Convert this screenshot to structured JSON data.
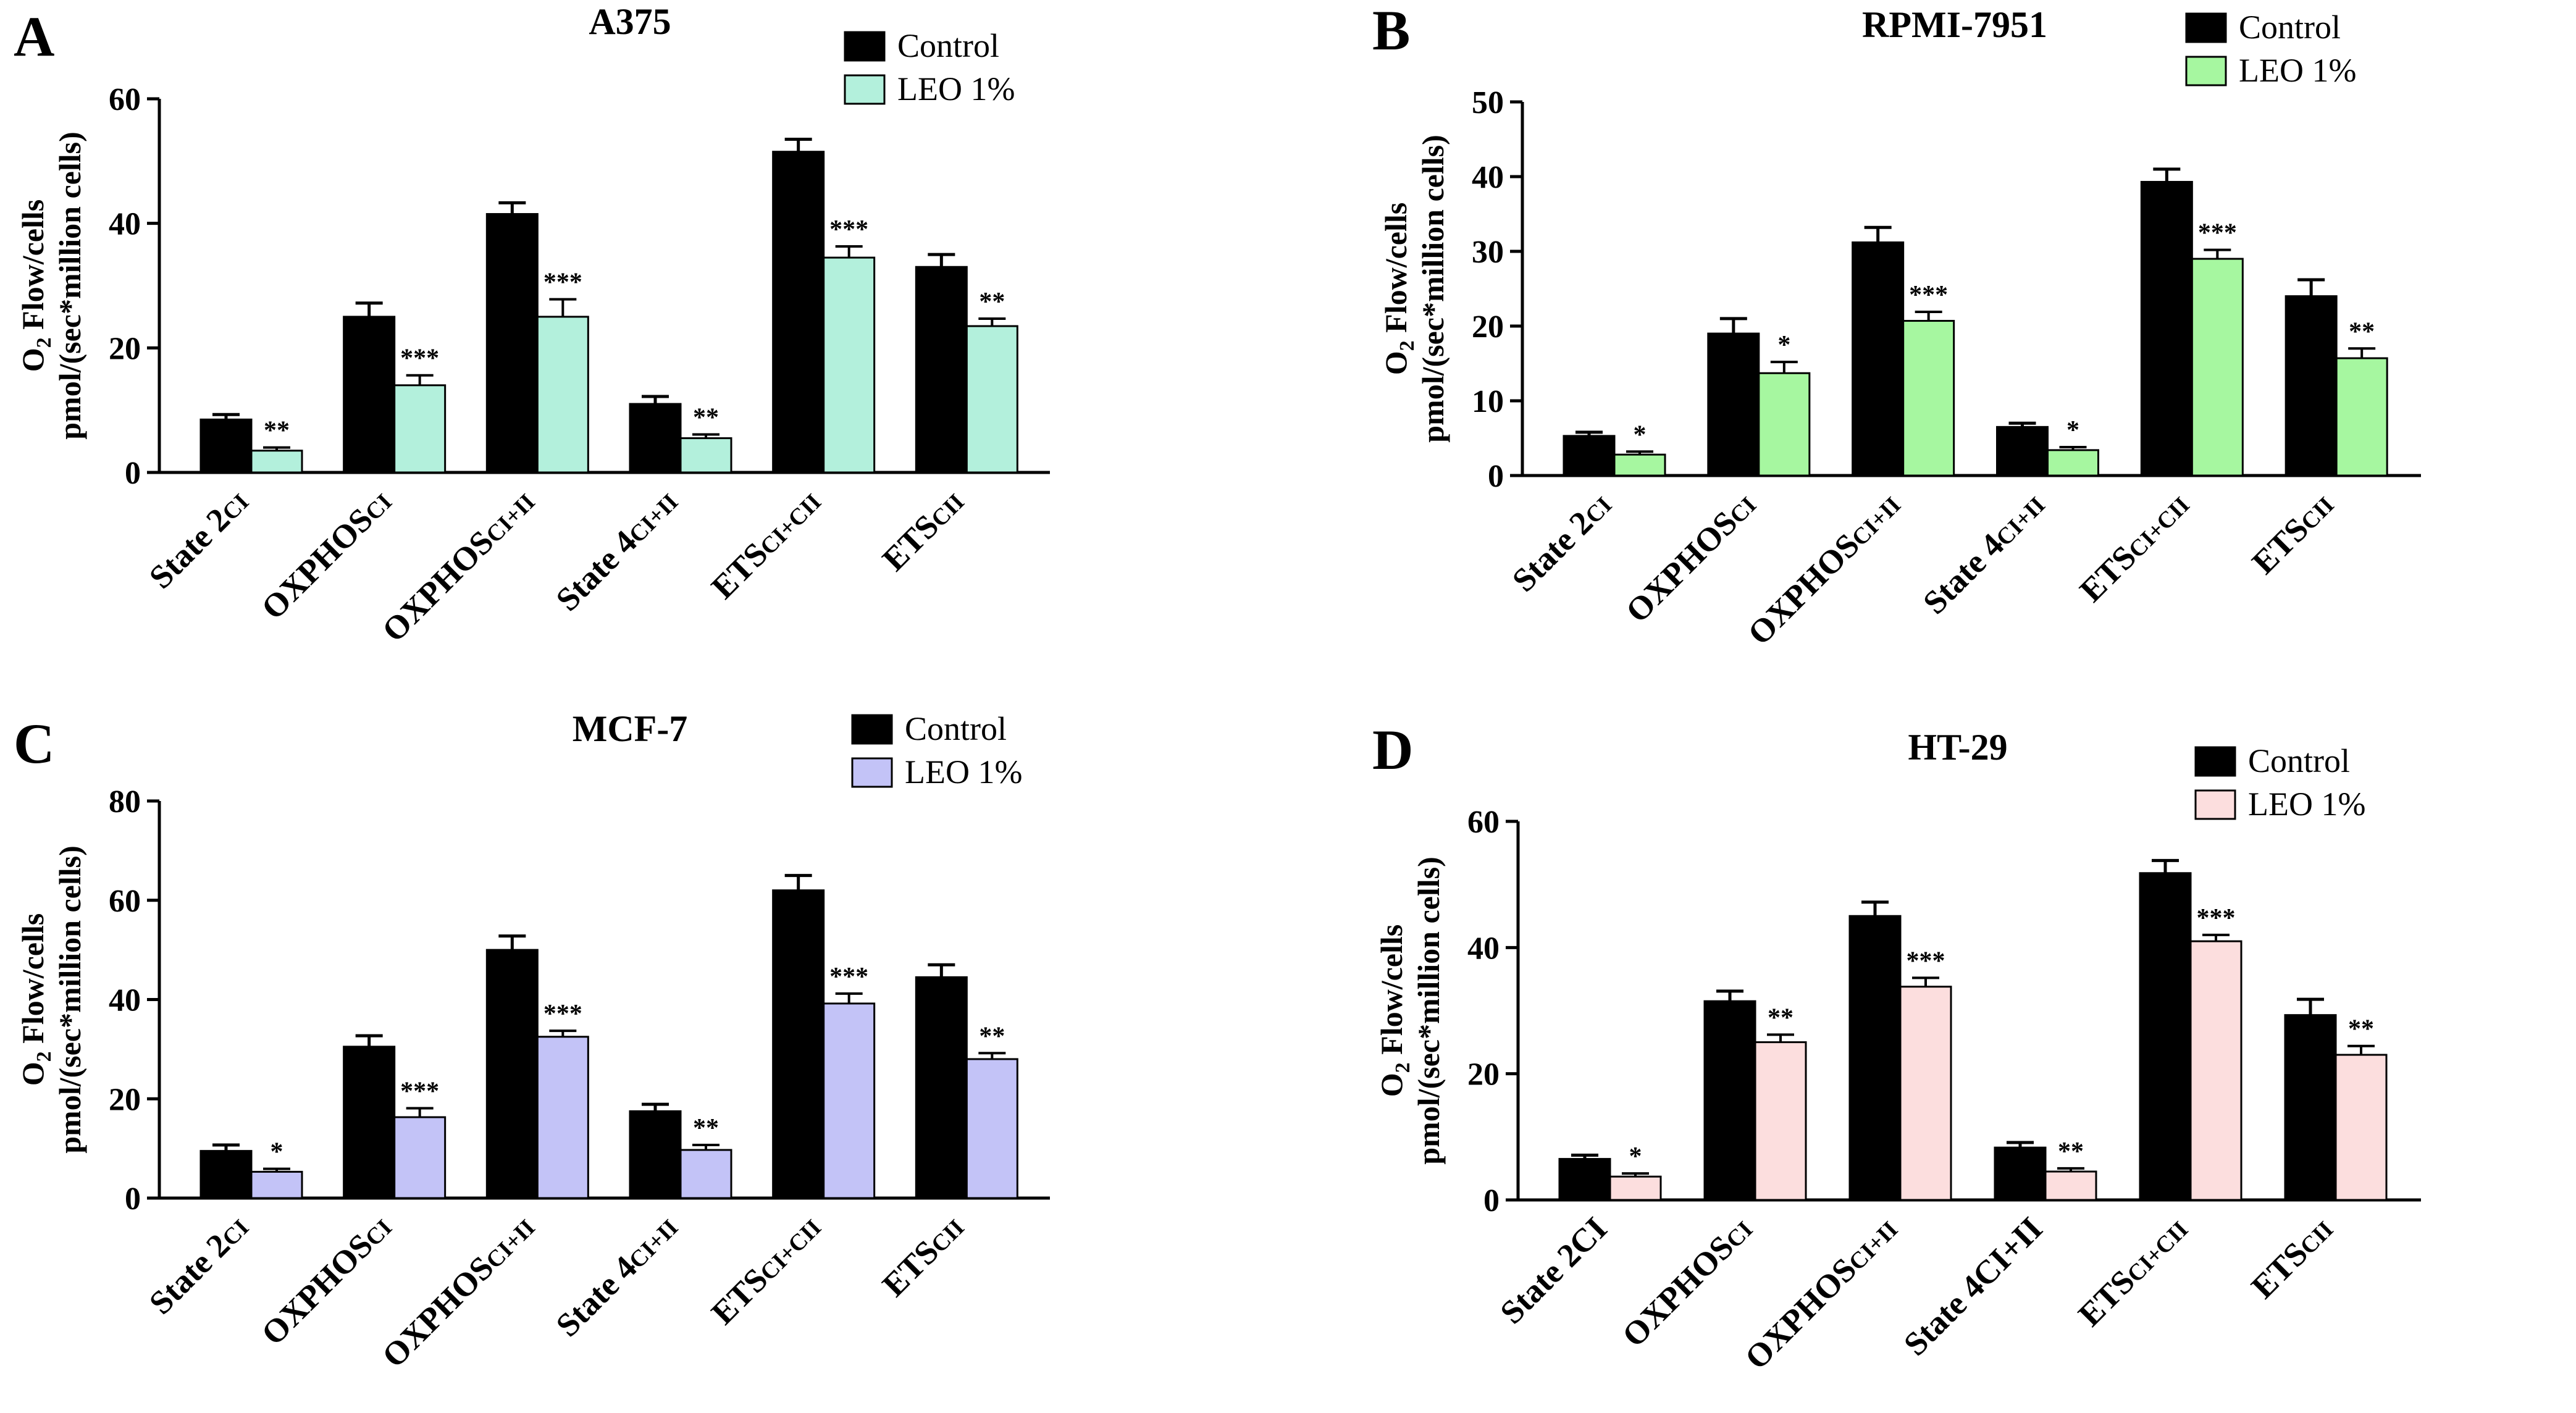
{
  "figure": {
    "y_axis_label_line1": "O2 Flow/cells",
    "y_axis_label_line2": "pmol/(sec*million cells)",
    "legend_control": "Control",
    "legend_treatment": "LEO 1%",
    "control_color": "#000000"
  },
  "chart_data": [
    {
      "panel": "A",
      "type": "bar",
      "title": "A375",
      "ylabel": "O2 Flow/cells pmol/(sec*million cells)",
      "ylim": [
        0,
        60
      ],
      "yticks": [
        0,
        20,
        40,
        60
      ],
      "categories": [
        {
          "base": "State 2",
          "sub": "CI"
        },
        {
          "base": "OXPHOS",
          "sub": "CI"
        },
        {
          "base": "OXPHOS",
          "sub": "CI+II"
        },
        {
          "base": "State 4",
          "sub": "CI+II"
        },
        {
          "base": "ETS",
          "sub": "CI+CII"
        },
        {
          "base": "ETS",
          "sub": "CII"
        }
      ],
      "treatment_color": "#b3f0dc",
      "legend": "top-right",
      "series": [
        {
          "name": "Control",
          "values": [
            8.5,
            25,
            41.5,
            11,
            51.5,
            33
          ],
          "errors": [
            0.8,
            2.2,
            1.8,
            1.2,
            2.0,
            2.0
          ]
        },
        {
          "name": "LEO 1%",
          "values": [
            3.5,
            14,
            25,
            5.5,
            34.5,
            23.5
          ],
          "errors": [
            0.5,
            1.6,
            2.8,
            0.6,
            1.8,
            1.2
          ]
        }
      ],
      "significance": [
        "**",
        "***",
        "***",
        "**",
        "***",
        "**"
      ]
    },
    {
      "panel": "B",
      "type": "bar",
      "title": "RPMI-7951",
      "ylabel": "O2 Flow/cells pmol/(sec*million cells)",
      "ylim": [
        0,
        50
      ],
      "yticks": [
        0,
        10,
        20,
        30,
        40,
        50
      ],
      "categories": [
        {
          "base": "State 2",
          "sub": "CI"
        },
        {
          "base": "OXPHOS",
          "sub": "CI"
        },
        {
          "base": "OXPHOS",
          "sub": "CI+II"
        },
        {
          "base": "State 4",
          "sub": "CI+II"
        },
        {
          "base": "ETS",
          "sub": "CI+CII"
        },
        {
          "base": "ETS",
          "sub": "CII"
        }
      ],
      "treatment_color": "#a6f7a0",
      "legend": "top-right",
      "series": [
        {
          "name": "Control",
          "values": [
            5.3,
            19,
            31.2,
            6.5,
            39.3,
            24
          ],
          "errors": [
            0.5,
            2.0,
            2.0,
            0.5,
            1.7,
            2.2
          ]
        },
        {
          "name": "LEO 1%",
          "values": [
            2.8,
            13.7,
            20.7,
            3.4,
            29,
            15.7
          ],
          "errors": [
            0.4,
            1.5,
            1.2,
            0.4,
            1.2,
            1.3
          ]
        }
      ],
      "significance": [
        "*",
        "*",
        "***",
        "*",
        "***",
        "**"
      ]
    },
    {
      "panel": "C",
      "type": "bar",
      "title": "MCF-7",
      "ylabel": "O2 Flow/cells pmol/(sec*million cells)",
      "ylim": [
        0,
        80
      ],
      "yticks": [
        0,
        20,
        40,
        60,
        80
      ],
      "categories": [
        {
          "base": "State 2",
          "sub": "CI"
        },
        {
          "base": "OXPHOS",
          "sub": "CI"
        },
        {
          "base": "OXPHOS",
          "sub": "CI+II"
        },
        {
          "base": "State 4",
          "sub": "CI+II"
        },
        {
          "base": "ETS",
          "sub": "CI+CII"
        },
        {
          "base": "ETS",
          "sub": "CII"
        }
      ],
      "treatment_color": "#c3c3f7",
      "legend": "top-right",
      "series": [
        {
          "name": "Control",
          "values": [
            9.5,
            30.5,
            50,
            17.5,
            62,
            44.5
          ],
          "errors": [
            1.2,
            2.2,
            2.8,
            1.4,
            3.0,
            2.5
          ]
        },
        {
          "name": "LEO 1%",
          "values": [
            5.3,
            16.3,
            32.5,
            9.7,
            39.2,
            28
          ],
          "errors": [
            0.6,
            1.8,
            1.2,
            1.0,
            2.0,
            1.2
          ]
        }
      ],
      "significance": [
        "*",
        "***",
        "***",
        "**",
        "***",
        "**"
      ]
    },
    {
      "panel": "D",
      "type": "bar",
      "title": "HT-29",
      "ylabel": "O2 Flow/cells pmol/(sec*million cells)",
      "ylim": [
        0,
        60
      ],
      "yticks": [
        0,
        20,
        40,
        60
      ],
      "categories": [
        {
          "base": "State 2CI",
          "sub": ""
        },
        {
          "base": "OXPHOS",
          "sub": "CI"
        },
        {
          "base": "OXPHOS",
          "sub": "CI+II"
        },
        {
          "base": "State 4CI+II",
          "sub": ""
        },
        {
          "base": "ETS",
          "sub": "CI+CII"
        },
        {
          "base": "ETS",
          "sub": "CII"
        }
      ],
      "treatment_color": "#fcdede",
      "legend": "top-right",
      "series": [
        {
          "name": "Control",
          "values": [
            6.5,
            31.5,
            45,
            8.3,
            51.8,
            29.3
          ],
          "errors": [
            0.6,
            1.6,
            2.2,
            0.8,
            2.0,
            2.5
          ]
        },
        {
          "name": "LEO 1%",
          "values": [
            3.7,
            25,
            33.8,
            4.5,
            41,
            23
          ],
          "errors": [
            0.5,
            1.2,
            1.4,
            0.5,
            1.0,
            1.4
          ]
        }
      ],
      "significance": [
        "*",
        "**",
        "***",
        "**",
        "***",
        "**"
      ]
    }
  ]
}
